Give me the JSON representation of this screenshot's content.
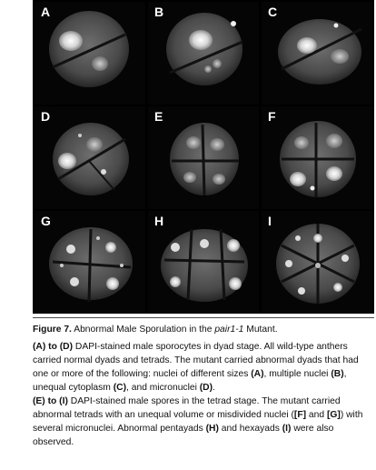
{
  "figure": {
    "panels": [
      {
        "id": "a",
        "label": "A"
      },
      {
        "id": "b",
        "label": "B"
      },
      {
        "id": "c",
        "label": "C"
      },
      {
        "id": "d",
        "label": "D"
      },
      {
        "id": "e",
        "label": "E"
      },
      {
        "id": "f",
        "label": "F"
      },
      {
        "id": "g",
        "label": "G"
      },
      {
        "id": "h",
        "label": "H"
      },
      {
        "id": "i",
        "label": "I"
      }
    ]
  },
  "caption": {
    "title_prefix": "Figure 7.",
    "title_text_before": " Abnormal Male Sporulation in the ",
    "title_gene": "pair1-1",
    "title_text_after": " Mutant.",
    "para1": {
      "ref_a_to_d": "(A) to (D)",
      "text1": " DAPI-stained male sporocytes in dyad stage. All wild-type anthers carried normal dyads and tetrads. The mutant carried abnormal dyads that had one or more of the following: nuclei of different sizes ",
      "ref_a": "(A)",
      "text2": ", multiple nuclei ",
      "ref_b": "(B)",
      "text3": ", unequal cytoplasm ",
      "ref_c": "(C)",
      "text4": ", and micronuclei ",
      "ref_d": "(D)",
      "text5": "."
    },
    "para2": {
      "ref_e_to_i": "(E) to (I)",
      "text1": " DAPI-stained male spores in the tetrad stage. The mutant carried abnormal tetrads with an unequal volume or misdivided nuclei (",
      "ref_f": "[F]",
      "text2": " and ",
      "ref_g": "[G]",
      "text3": ") with several micronuclei. Abnormal pentayads ",
      "ref_h": "(H)",
      "text4": " and hexayads ",
      "ref_i": "(I)",
      "text5": " were also observed."
    }
  }
}
